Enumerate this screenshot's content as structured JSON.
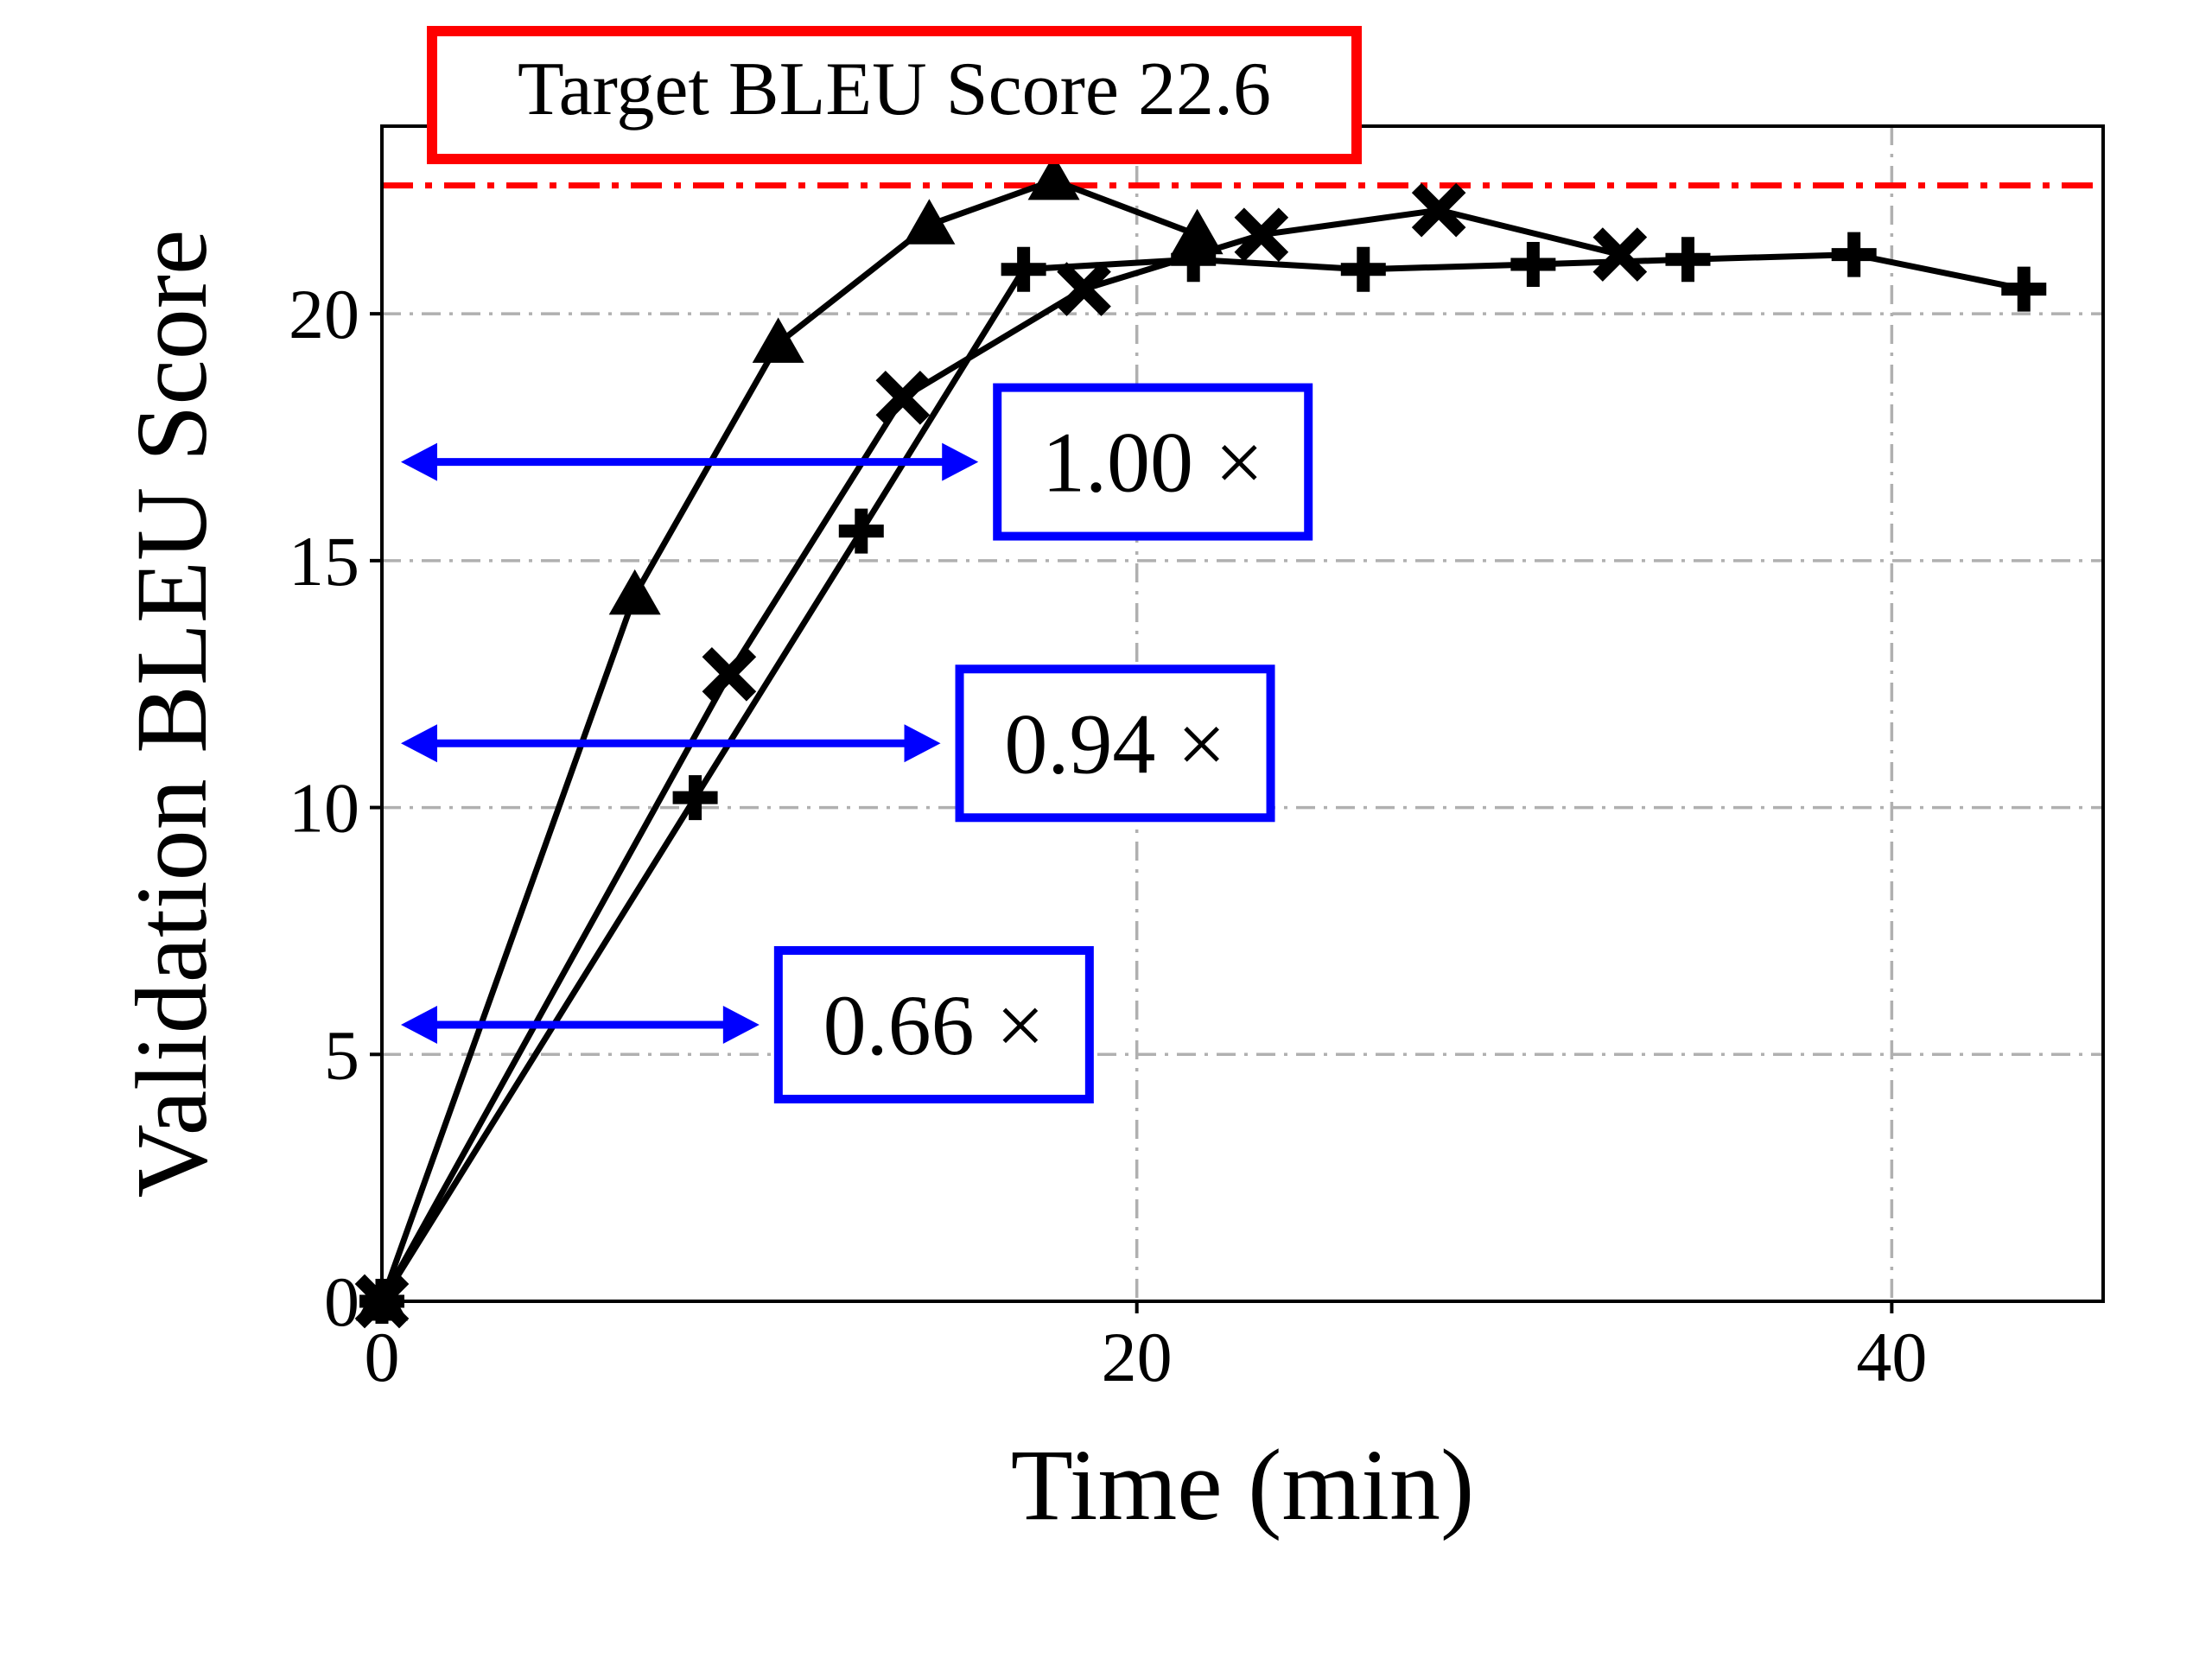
{
  "chart_data": {
    "type": "line",
    "title": "",
    "xlabel": "Time (min)",
    "ylabel": "Validation BLEU Score",
    "xlim": [
      0,
      45.6
    ],
    "ylim": [
      0,
      23.8
    ],
    "xticks": [
      0,
      20,
      40
    ],
    "yticks": [
      0,
      5,
      10,
      15,
      20
    ],
    "grid": true,
    "legend": "none",
    "series": [
      {
        "marker": "triangle",
        "x": [
          0,
          6.7,
          10.5,
          14.5,
          17.8,
          21.6
        ],
        "y": [
          0,
          14.3,
          19.4,
          21.8,
          22.7,
          21.6
        ]
      },
      {
        "marker": "x",
        "x": [
          0,
          9.2,
          13.8,
          18.6,
          23.3,
          28.0,
          32.8
        ],
        "y": [
          0,
          12.7,
          18.3,
          20.5,
          21.6,
          22.1,
          21.2
        ]
      },
      {
        "marker": "plus",
        "x": [
          0,
          8.3,
          12.7,
          17.0,
          21.5,
          26.0,
          30.5,
          34.6,
          39.0,
          43.5
        ],
        "y": [
          0,
          10.2,
          15.6,
          20.9,
          21.1,
          20.9,
          21.0,
          21.1,
          21.2,
          20.5
        ]
      }
    ],
    "target": {
      "value": 22.6,
      "label": "Target BLEU Score 22.6",
      "color": "#ff0000"
    },
    "annotations": [
      {
        "label": "1.00 ×",
        "y": 17.0,
        "x_end": 15.8,
        "color": "#0000ff"
      },
      {
        "label": "0.94 ×",
        "y": 11.3,
        "x_end": 14.8,
        "color": "#0000ff"
      },
      {
        "label": "0.66 ×",
        "y": 5.6,
        "x_end": 10.0,
        "color": "#0000ff"
      }
    ]
  }
}
